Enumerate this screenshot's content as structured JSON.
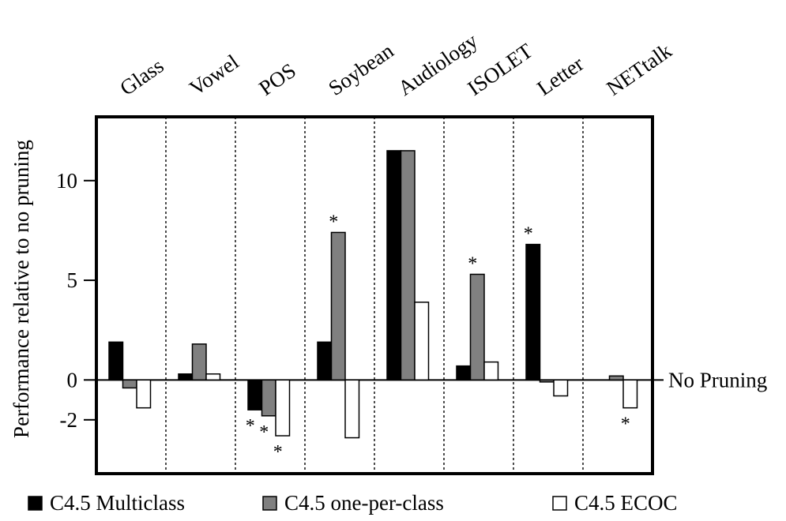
{
  "chart_data": {
    "type": "bar",
    "ylabel": "Performance relative to no pruning",
    "ylim": [
      -4.7,
      13.2
    ],
    "yticks": [
      {
        "value": 10,
        "label": "10"
      },
      {
        "value": 5,
        "label": "5"
      },
      {
        "value": 0,
        "label": "0"
      },
      {
        "value": -2,
        "label": "-2"
      }
    ],
    "categories": [
      "Glass",
      "Vowel",
      "POS",
      "Soybean",
      "Audiology",
      "ISOLET",
      "Letter",
      "NETtalk"
    ],
    "series": [
      {
        "name": "C4.5 Multiclass",
        "color": "#000000",
        "values": [
          1.9,
          0.3,
          -1.5,
          1.9,
          11.5,
          0.7,
          6.8,
          0.0
        ],
        "significant": [
          false,
          false,
          true,
          false,
          false,
          false,
          true,
          false
        ]
      },
      {
        "name": "C4.5 one-per-class",
        "color": "#808080",
        "values": [
          -0.4,
          1.8,
          -1.8,
          7.4,
          11.5,
          5.3,
          -0.1,
          0.2
        ],
        "significant": [
          false,
          false,
          true,
          true,
          false,
          true,
          false,
          false
        ]
      },
      {
        "name": "C4.5 ECOC",
        "color": "#ffffff",
        "values": [
          -1.4,
          0.3,
          -2.8,
          -2.9,
          3.9,
          0.9,
          -0.8,
          -1.4
        ],
        "significant": [
          false,
          false,
          true,
          false,
          false,
          false,
          false,
          true
        ]
      }
    ],
    "significance_marker": "*",
    "reference_line": {
      "value": 0,
      "label": "No Pruning"
    },
    "legend": {
      "position": "bottom"
    },
    "grid": false,
    "category_separators": "dotted"
  }
}
